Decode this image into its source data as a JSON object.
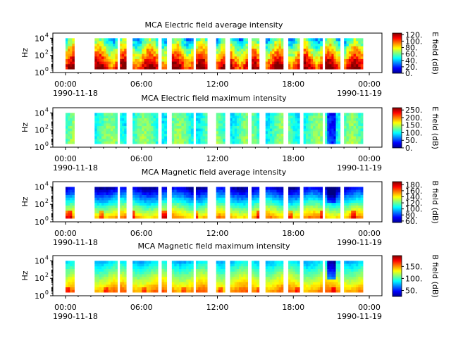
{
  "chart_data": [
    {
      "type": "heatmap",
      "title": "MCA  Electric field average intensity",
      "ylabel": "Hz",
      "ytick_exponents": [
        "4",
        "2",
        "0"
      ],
      "ylim_log10": [
        0,
        4.6
      ],
      "xlim_hours": [
        -1,
        25
      ],
      "xticks": [
        "00:00",
        "06:00",
        "12:00",
        "18:00",
        "00:00"
      ],
      "xtick_hours": [
        0,
        6,
        12,
        18,
        24
      ],
      "date_labels": [
        "1990-11-18",
        "1990-11-19"
      ],
      "colorbar": {
        "label": "E field (dB)",
        "range": [
          0,
          125
        ],
        "ticks": [
          "120.",
          "100.",
          "80.",
          "60.",
          "40.",
          "20.",
          "0."
        ],
        "tick_values": [
          120,
          100,
          80,
          60,
          40,
          20,
          0
        ]
      },
      "style": "e_avg"
    },
    {
      "type": "heatmap",
      "title": "MCA  Electric field maximum intensity",
      "ylabel": "Hz",
      "ytick_exponents": [
        "4",
        "2",
        "0"
      ],
      "ylim_log10": [
        0,
        4.6
      ],
      "xlim_hours": [
        -1,
        25
      ],
      "xticks": [
        "00:00",
        "06:00",
        "12:00",
        "18:00",
        "00:00"
      ],
      "xtick_hours": [
        0,
        6,
        12,
        18,
        24
      ],
      "date_labels": [
        "1990-11-18",
        "1990-11-19"
      ],
      "colorbar": {
        "label": "E field (dB)",
        "range": [
          0,
          265
        ],
        "ticks": [
          "250.",
          "200.",
          "150.",
          "100.",
          "50.",
          "0."
        ],
        "tick_values": [
          250,
          200,
          150,
          100,
          50,
          0
        ]
      },
      "style": "e_max"
    },
    {
      "type": "heatmap",
      "title": "MCA  Magnetic field average intensity",
      "ylabel": "Hz",
      "ytick_exponents": [
        "4",
        "2",
        "0"
      ],
      "ylim_log10": [
        0,
        4.6
      ],
      "xlim_hours": [
        -1,
        25
      ],
      "xticks": [
        "00:00",
        "06:00",
        "12:00",
        "18:00",
        "00:00"
      ],
      "xtick_hours": [
        0,
        6,
        12,
        18,
        24
      ],
      "date_labels": [
        "1990-11-18",
        "1990-11-19"
      ],
      "colorbar": {
        "label": "B field (dB)",
        "range": [
          55,
          190
        ],
        "ticks": [
          "180.",
          "160.",
          "140.",
          "120.",
          "100.",
          "80.",
          "60."
        ],
        "tick_values": [
          180,
          160,
          140,
          120,
          100,
          80,
          60
        ]
      },
      "style": "b_avg"
    },
    {
      "type": "heatmap",
      "title": "MCA  Magnetic field maximum intensity",
      "ylabel": "Hz",
      "ytick_exponents": [
        "4",
        "2",
        "0"
      ],
      "ylim_log10": [
        0,
        4.6
      ],
      "xlim_hours": [
        -1,
        25
      ],
      "xticks": [
        "00:00",
        "06:00",
        "12:00",
        "18:00",
        "00:00"
      ],
      "xtick_hours": [
        0,
        6,
        12,
        18,
        24
      ],
      "date_labels": [
        "1990-11-18",
        "1990-11-19"
      ],
      "colorbar": {
        "label": "B field (dB)",
        "range": [
          25,
          195
        ],
        "ticks": [
          "150.",
          "100.",
          "50."
        ],
        "tick_values": [
          150,
          100,
          50
        ]
      },
      "style": "b_max"
    }
  ],
  "data_segments_hours": [
    [
      0.0,
      0.7
    ],
    [
      2.3,
      4.1
    ],
    [
      4.3,
      4.8
    ],
    [
      5.3,
      7.3
    ],
    [
      7.6,
      8.0
    ],
    [
      8.4,
      10.1
    ],
    [
      10.3,
      11.2
    ],
    [
      11.9,
      12.6
    ],
    [
      13.0,
      14.4
    ],
    [
      14.7,
      15.3
    ],
    [
      15.8,
      17.2
    ],
    [
      17.6,
      18.5
    ],
    [
      18.8,
      20.3
    ],
    [
      20.5,
      21.7
    ],
    [
      22.0,
      23.5
    ]
  ],
  "data_freq_range_log10": [
    0.4,
    4.0
  ]
}
